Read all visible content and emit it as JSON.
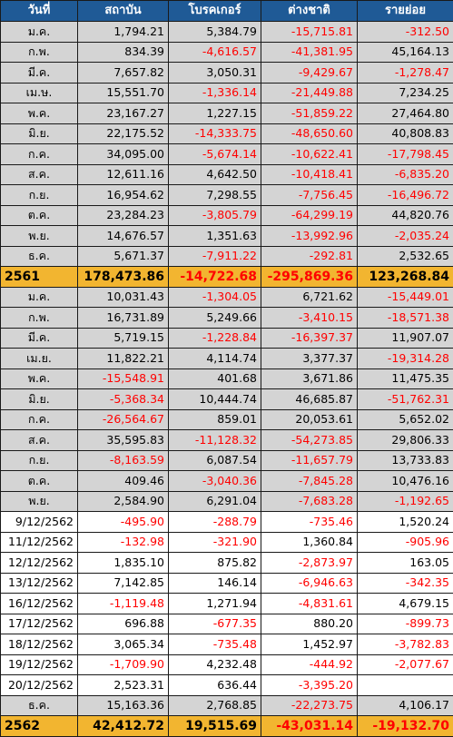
{
  "headers": [
    "วันที่",
    "สถาบัน",
    "โบรคเกอร์",
    "ต่างชาติ",
    "รายย่อย"
  ],
  "rows": [
    {
      "style": "gray",
      "label": "ม.ค.",
      "values": [
        "1,794.21",
        "5,384.79",
        "-15,715.81",
        "-312.50"
      ]
    },
    {
      "style": "gray",
      "label": "ก.พ.",
      "values": [
        "834.39",
        "-4,616.57",
        "-41,381.95",
        "45,164.13"
      ]
    },
    {
      "style": "gray",
      "label": "มี.ค.",
      "values": [
        "7,657.82",
        "3,050.31",
        "-9,429.67",
        "-1,278.47"
      ]
    },
    {
      "style": "gray",
      "label": "เม.ษ.",
      "values": [
        "15,551.70",
        "-1,336.14",
        "-21,449.88",
        "7,234.25"
      ]
    },
    {
      "style": "gray",
      "label": "พ.ค.",
      "values": [
        "23,167.27",
        "1,227.15",
        "-51,859.22",
        "27,464.80"
      ]
    },
    {
      "style": "gray",
      "label": "มิ.ย.",
      "values": [
        "22,175.52",
        "-14,333.75",
        "-48,650.60",
        "40,808.83"
      ]
    },
    {
      "style": "gray",
      "label": "ก.ค.",
      "values": [
        "34,095.00",
        "-5,674.14",
        "-10,622.41",
        "-17,798.45"
      ]
    },
    {
      "style": "gray",
      "label": "ส.ค.",
      "values": [
        "12,611.16",
        "4,642.50",
        "-10,418.41",
        "-6,835.20"
      ]
    },
    {
      "style": "gray",
      "label": "ก.ย.",
      "values": [
        "16,954.62",
        "7,298.55",
        "-7,756.45",
        "-16,496.72"
      ]
    },
    {
      "style": "gray",
      "label": "ต.ค.",
      "values": [
        "23,284.23",
        "-3,805.79",
        "-64,299.19",
        "44,820.76"
      ]
    },
    {
      "style": "gray",
      "label": "พ.ย.",
      "values": [
        "14,676.57",
        "1,351.63",
        "-13,992.96",
        "-2,035.24"
      ]
    },
    {
      "style": "gray",
      "label": "ธ.ค.",
      "values": [
        "5,671.37",
        "-7,911.22",
        "-292.81",
        "2,532.65"
      ]
    },
    {
      "style": "total",
      "label": "2561",
      "values": [
        "178,473.86",
        "-14,722.68",
        "-295,869.36",
        "123,268.84"
      ]
    },
    {
      "style": "gray",
      "label": "ม.ค.",
      "values": [
        "10,031.43",
        "-1,304.05",
        "6,721.62",
        "-15,449.01"
      ]
    },
    {
      "style": "gray",
      "label": "ก.พ.",
      "values": [
        "16,731.89",
        "5,249.66",
        "-3,410.15",
        "-18,571.38"
      ]
    },
    {
      "style": "gray",
      "label": "มี.ค.",
      "values": [
        "5,719.15",
        "-1,228.84",
        "-16,397.37",
        "11,907.07"
      ]
    },
    {
      "style": "gray",
      "label": "เม.ย.",
      "values": [
        "11,822.21",
        "4,114.74",
        "3,377.37",
        "-19,314.28"
      ]
    },
    {
      "style": "gray",
      "label": "พ.ค.",
      "values": [
        "-15,548.91",
        "401.68",
        "3,671.86",
        "11,475.35"
      ]
    },
    {
      "style": "gray",
      "label": "มิ.ย.",
      "values": [
        "-5,368.34",
        "10,444.74",
        "46,685.87",
        "-51,762.31"
      ]
    },
    {
      "style": "gray",
      "label": "ก.ค.",
      "values": [
        "-26,564.67",
        "859.01",
        "20,053.61",
        "5,652.02"
      ]
    },
    {
      "style": "gray",
      "label": "ส.ค.",
      "values": [
        "35,595.83",
        "-11,128.32",
        "-54,273.85",
        "29,806.33"
      ]
    },
    {
      "style": "gray",
      "label": "ก.ย.",
      "values": [
        "-8,163.59",
        "6,087.54",
        "-11,657.79",
        "13,733.83"
      ]
    },
    {
      "style": "gray",
      "label": "ต.ค.",
      "values": [
        "409.46",
        "-3,040.36",
        "-7,845.28",
        "10,476.16"
      ]
    },
    {
      "style": "gray",
      "label": "พ.ย.",
      "values": [
        "2,584.90",
        "6,291.04",
        "-7,683.28",
        "-1,192.65"
      ]
    },
    {
      "style": "white",
      "label": "9/12/2562",
      "values": [
        "-495.90",
        "-288.79",
        "-735.46",
        "1,520.24"
      ]
    },
    {
      "style": "white",
      "label": "11/12/2562",
      "values": [
        "-132.98",
        "-321.90",
        "1,360.84",
        "-905.96"
      ]
    },
    {
      "style": "white",
      "label": "12/12/2562",
      "values": [
        "1,835.10",
        "875.82",
        "-2,873.97",
        "163.05"
      ]
    },
    {
      "style": "white",
      "label": "13/12/2562",
      "values": [
        "7,142.85",
        "146.14",
        "-6,946.63",
        "-342.35"
      ]
    },
    {
      "style": "white",
      "label": "16/12/2562",
      "values": [
        "-1,119.48",
        "1,271.94",
        "-4,831.61",
        "4,679.15"
      ]
    },
    {
      "style": "white",
      "label": "17/12/2562",
      "values": [
        "696.88",
        "-677.35",
        "880.20",
        "-899.73"
      ]
    },
    {
      "style": "white",
      "label": "18/12/2562",
      "values": [
        "3,065.34",
        "-735.48",
        "1,452.97",
        "-3,782.83"
      ]
    },
    {
      "style": "white",
      "label": "19/12/2562",
      "values": [
        "-1,709.90",
        "4,232.48",
        "-444.92",
        "-2,077.67"
      ]
    },
    {
      "style": "white",
      "label": "20/12/2562",
      "values": [
        "2,523.31",
        "636.44",
        "-3,395.20",
        ""
      ]
    },
    {
      "style": "gray",
      "label": "ธ.ค.",
      "values": [
        "15,163.36",
        "2,768.85",
        "-22,273.75",
        "4,106.17"
      ]
    },
    {
      "style": "total",
      "label": "2562",
      "values": [
        "42,412.72",
        "19,515.69",
        "-43,031.14",
        "-19,132.70"
      ]
    }
  ]
}
